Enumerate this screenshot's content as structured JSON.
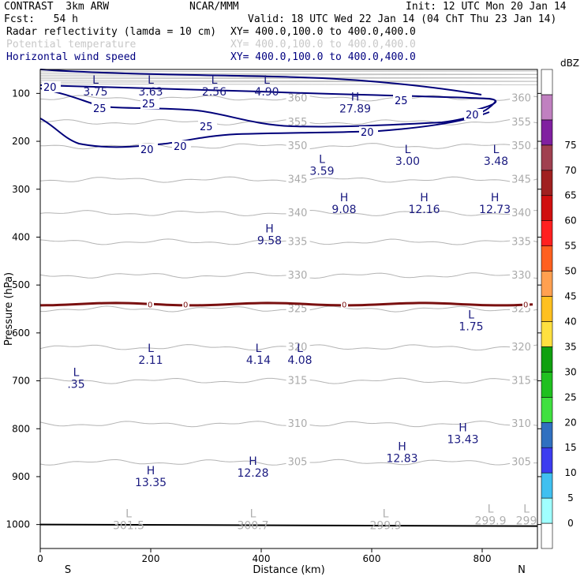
{
  "header": {
    "model": "CONTRAST  3km ARW",
    "org": "NCAR/MMM",
    "init": "Init: 12 UTC Mon 20 Jan 14",
    "fcst": "Fcst:   54 h",
    "valid": "Valid: 18 UTC Wed 22 Jan 14 (04 ChT Thu 23 Jan 14)",
    "fields": [
      {
        "name": "Radar reflectivity (lamda = 10 cm)",
        "xy": "XY= 400.0,100.0 to 400.0,400.0",
        "color": "#000000"
      },
      {
        "name": "Potential temperature",
        "xy": "XY= 400.0,100.0 to 400.0,400.0",
        "color": "#c8c8c8"
      },
      {
        "name": "Horizontal wind speed",
        "xy": "XY= 400.0,100.0 to 400.0,400.0",
        "color": "#000080"
      }
    ]
  },
  "chart_data": {
    "type": "contour",
    "xlabel": "Distance (km)",
    "ylabel": "Pressure (hPa)",
    "xlim": [
      0,
      900
    ],
    "ylim": [
      1050,
      50
    ],
    "xticks": [
      0,
      200,
      400,
      600,
      800
    ],
    "yticks": [
      100,
      200,
      300,
      400,
      500,
      600,
      700,
      800,
      900,
      1000
    ],
    "x_end_labels": {
      "left": "S",
      "right": "N"
    },
    "colorbar": {
      "unit": "dBZ",
      "levels": [
        0,
        5,
        10,
        15,
        20,
        25,
        30,
        35,
        40,
        45,
        50,
        55,
        60,
        65,
        70,
        75
      ],
      "colors": [
        "#ffffff",
        "#a0ffff",
        "#40c0f0",
        "#3c3cf0",
        "#3070c0",
        "#40e040",
        "#20c020",
        "#10a010",
        "#ffe040",
        "#ffc020",
        "#ffa050",
        "#ff6020",
        "#ff2020",
        "#d01010",
        "#a02020",
        "#a04050",
        "#8020a0",
        "#c080c0",
        "#ffffff"
      ]
    },
    "theta_contours": [
      {
        "value": "360",
        "x": [
          0,
          900
        ],
        "p": [
          110,
          110
        ]
      },
      {
        "value": "355",
        "x": [
          0,
          900
        ],
        "p": [
          160,
          160
        ]
      },
      {
        "value": "350",
        "x": [
          0,
          900
        ],
        "p": [
          210,
          210
        ]
      },
      {
        "value": "345",
        "x": [
          0,
          900
        ],
        "p": [
          280,
          280
        ]
      },
      {
        "value": "340",
        "x": [
          0,
          900
        ],
        "p": [
          350,
          350
        ]
      },
      {
        "value": "335",
        "x": [
          0,
          900
        ],
        "p": [
          410,
          410
        ]
      },
      {
        "value": "330",
        "x": [
          0,
          900
        ],
        "p": [
          480,
          480
        ]
      },
      {
        "value": "325",
        "x": [
          0,
          900
        ],
        "p": [
          550,
          550
        ]
      },
      {
        "value": "320",
        "x": [
          0,
          900
        ],
        "p": [
          630,
          630
        ]
      },
      {
        "value": "315",
        "x": [
          0,
          900
        ],
        "p": [
          700,
          700
        ]
      },
      {
        "value": "310",
        "x": [
          0,
          900
        ],
        "p": [
          790,
          790
        ]
      },
      {
        "value": "305",
        "x": [
          0,
          900
        ],
        "p": [
          870,
          870
        ]
      }
    ],
    "wind_contours": [
      20,
      25
    ],
    "zero_line": {
      "value": "0",
      "p": 540
    },
    "surface_pressure": 1000,
    "annotations": [
      {
        "type": "L",
        "value": "3.75",
        "x": 100,
        "p": 80
      },
      {
        "type": "L",
        "value": "3.63",
        "x": 200,
        "p": 80
      },
      {
        "type": "L",
        "value": "2.56",
        "x": 315,
        "p": 80
      },
      {
        "type": "L",
        "value": "4.90",
        "x": 410,
        "p": 80
      },
      {
        "type": "H",
        "value": "27.89",
        "x": 570,
        "p": 115
      },
      {
        "type": "L",
        "value": "3.59",
        "x": 510,
        "p": 245
      },
      {
        "type": "L",
        "value": "3.00",
        "x": 665,
        "p": 225
      },
      {
        "type": "L",
        "value": "3.48",
        "x": 825,
        "p": 225
      },
      {
        "type": "H",
        "value": "9.08",
        "x": 550,
        "p": 325
      },
      {
        "type": "H",
        "value": "12.16",
        "x": 695,
        "p": 325
      },
      {
        "type": "H",
        "value": "12.73",
        "x": 823,
        "p": 325
      },
      {
        "type": "H",
        "value": "9.58",
        "x": 415,
        "p": 390
      },
      {
        "type": "L",
        "value": "1.75",
        "x": 780,
        "p": 570
      },
      {
        "type": "L",
        "value": "2.11",
        "x": 200,
        "p": 640
      },
      {
        "type": "L",
        "value": "4.14",
        "x": 395,
        "p": 640
      },
      {
        "type": "L",
        "value": "4.08",
        "x": 470,
        "p": 640
      },
      {
        "type": "L",
        "value": ".35",
        "x": 65,
        "p": 690
      },
      {
        "type": "H",
        "value": "13.43",
        "x": 765,
        "p": 805
      },
      {
        "type": "H",
        "value": "12.83",
        "x": 655,
        "p": 845
      },
      {
        "type": "H",
        "value": "12.28",
        "x": 385,
        "p": 875
      },
      {
        "type": "H",
        "value": "13.35",
        "x": 200,
        "p": 895
      },
      {
        "type": "L",
        "value": "301.5",
        "x": 160,
        "p": 985
      },
      {
        "type": "L",
        "value": "300.7",
        "x": 385,
        "p": 985
      },
      {
        "type": "L",
        "value": "299.9",
        "x": 625,
        "p": 985
      },
      {
        "type": "L",
        "value": "299.9",
        "x": 815,
        "p": 975
      },
      {
        "type": "L",
        "value": "299",
        "x": 880,
        "p": 975
      }
    ]
  }
}
